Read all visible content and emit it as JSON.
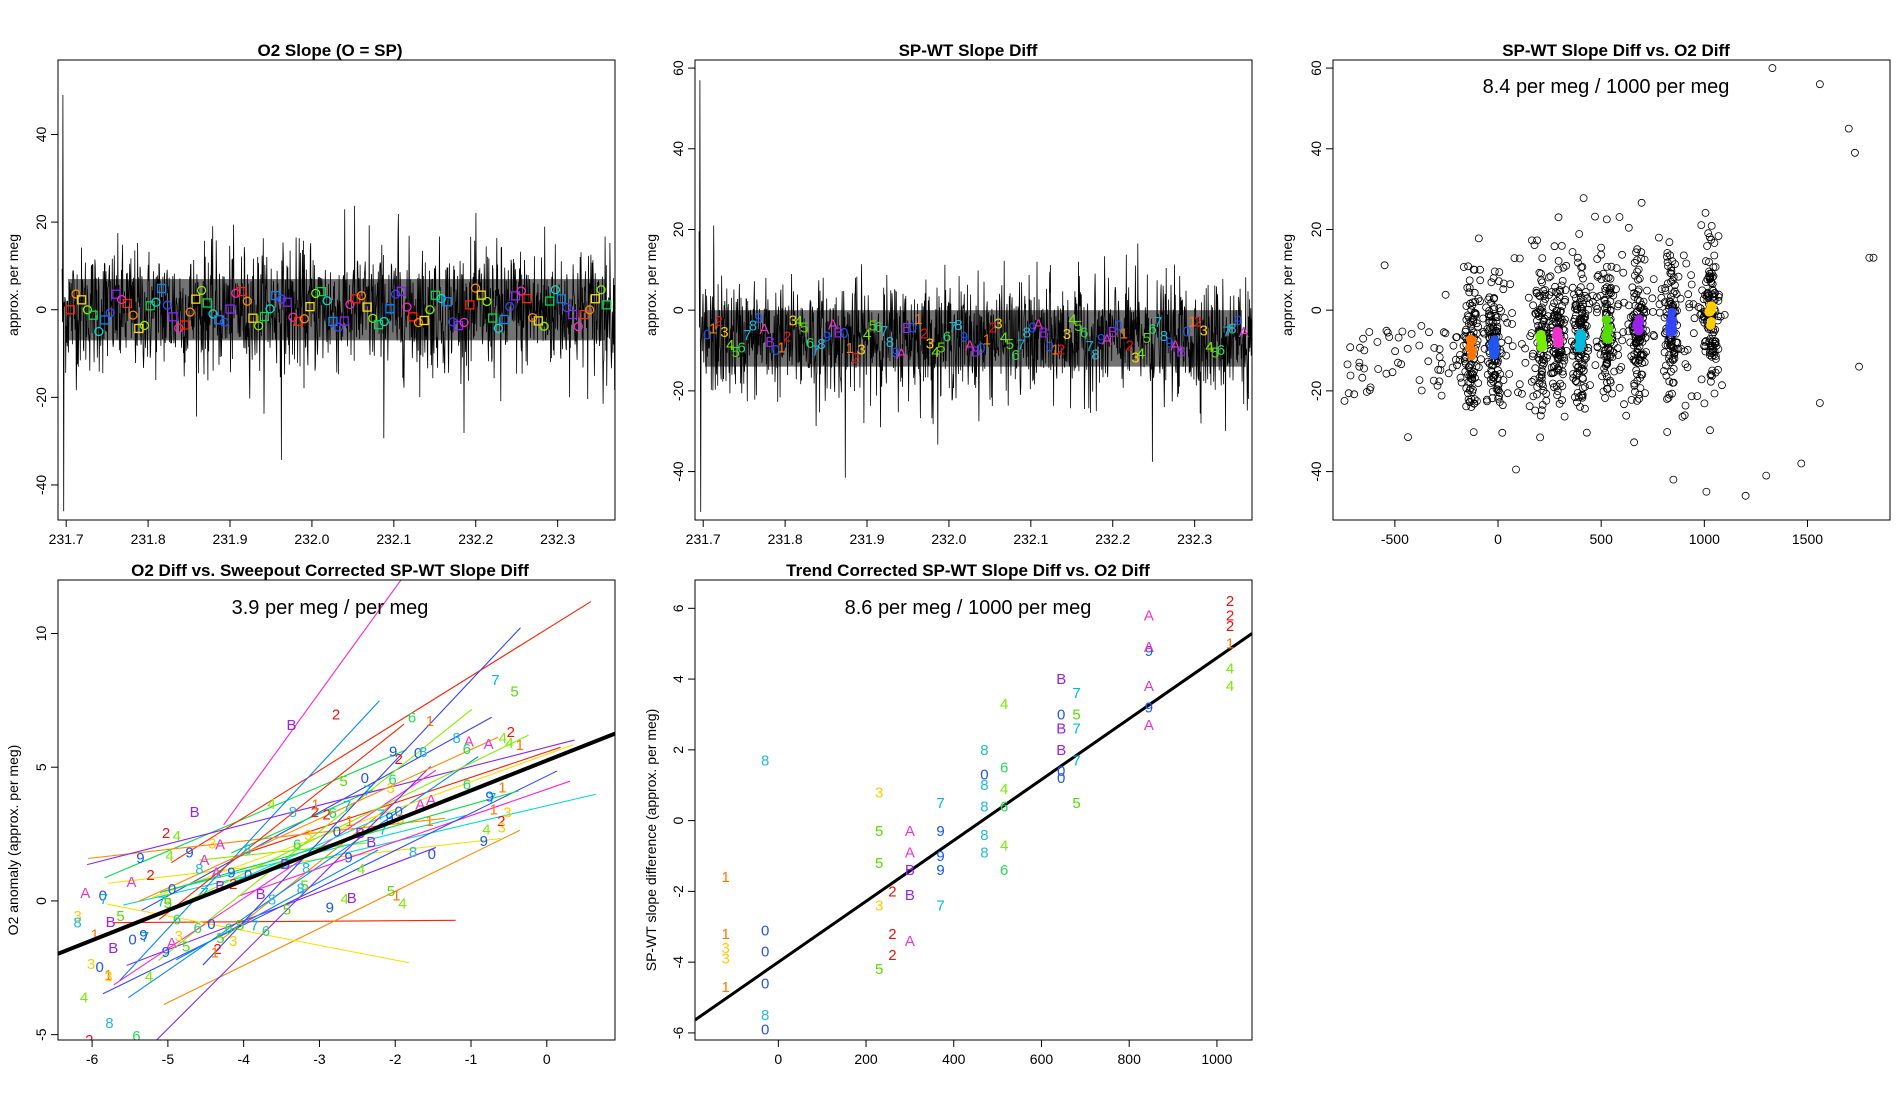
{
  "chart_data": [
    {
      "type": "line",
      "title": "O2 Slope (O = SP)",
      "xlabel": "",
      "ylabel": "approx. per meg",
      "xlim": [
        231.69,
        232.37
      ],
      "ylim": [
        -48,
        57
      ],
      "xticks": [
        "231.7",
        "231.8",
        "231.9",
        "232.0",
        "232.1",
        "232.2",
        "232.3"
      ],
      "yticks": [
        "-40",
        "-20",
        "0",
        "20",
        "40"
      ],
      "series_note": "dense noisy O2 slope trace around 0; colored squares and circles mark cylinder means",
      "base": 0
    },
    {
      "type": "line",
      "title": "SP-WT Slope Diff",
      "xlabel": "",
      "ylabel": "approx. per meg",
      "xlim": [
        231.69,
        232.37
      ],
      "ylim": [
        -52,
        62
      ],
      "xticks": [
        "231.7",
        "231.8",
        "231.9",
        "232.0",
        "232.1",
        "232.2",
        "232.3"
      ],
      "yticks": [
        "-40",
        "-20",
        "0",
        "20",
        "40",
        "60"
      ],
      "series_note": "dense noisy slope difference trace around -7; colored digits/letters mark cylinder codes",
      "base": -7
    },
    {
      "type": "scatter",
      "title": "SP-WT Slope Diff vs. O2 Diff",
      "annotation": "8.4 per meg / 1000 per meg",
      "xlabel": "",
      "ylabel": "approx. per meg",
      "xlim": [
        -800,
        1900
      ],
      "ylim": [
        -52,
        62
      ],
      "xticks": [
        "-500",
        "0",
        "500",
        "1000",
        "1500"
      ],
      "yticks": [
        "-40",
        "-20",
        "0",
        "20",
        "40",
        "60"
      ],
      "clusters_x": [
        -130,
        -20,
        210,
        290,
        400,
        530,
        680,
        840,
        1030
      ],
      "cluster_means": [
        -9,
        -10,
        -8,
        -7,
        -7,
        -6,
        -4,
        -3,
        -1
      ]
    },
    {
      "type": "scatter",
      "title": "O2 Diff vs. Sweepout Corrected SP-WT Slope Diff",
      "annotation": "3.9 per meg / per meg",
      "xlabel": "",
      "ylabel": "O2 anomaly (approx. per meg)",
      "xlim": [
        -6.45,
        0.9
      ],
      "ylim": [
        -5.2,
        12
      ],
      "xticks": [
        "-6",
        "-5",
        "-4",
        "-3",
        "-2",
        "-1",
        "0"
      ],
      "yticks": [
        "-5",
        "0",
        "5",
        "10"
      ],
      "fit_line": {
        "slope": 1.12,
        "intercept": 5.25
      }
    },
    {
      "type": "scatter",
      "title": "Trend Corrected SP-WT Slope Diff vs. O2 Diff",
      "annotation": "8.6 per meg / 1000 per meg",
      "xlabel": "",
      "ylabel": "SP-WT slope difference (approx. per meg)",
      "xlim": [
        -190,
        1080
      ],
      "ylim": [
        -6.2,
        6.8
      ],
      "xticks": [
        "0",
        "200",
        "400",
        "600",
        "800",
        "1000"
      ],
      "yticks": [
        "-6",
        "-4",
        "-2",
        "0",
        "2",
        "4",
        "6"
      ],
      "fit_line": {
        "slope": 0.0086,
        "intercept": -4.0
      },
      "points": [
        {
          "x": -120,
          "y": -3.2,
          "label": "1"
        },
        {
          "x": -120,
          "y": -3.6,
          "label": "3"
        },
        {
          "x": -120,
          "y": -1.6,
          "label": "1"
        },
        {
          "x": -120,
          "y": -3.9,
          "label": "3"
        },
        {
          "x": -120,
          "y": -4.7,
          "label": "1"
        },
        {
          "x": -30,
          "y": -3.1,
          "label": "0"
        },
        {
          "x": -30,
          "y": -3.7,
          "label": "0"
        },
        {
          "x": -30,
          "y": -4.6,
          "label": "0"
        },
        {
          "x": -30,
          "y": -5.5,
          "label": "8"
        },
        {
          "x": -30,
          "y": -5.9,
          "label": "0"
        },
        {
          "x": -30,
          "y": 1.7,
          "label": "8"
        },
        {
          "x": 230,
          "y": -1.2,
          "label": "5"
        },
        {
          "x": 230,
          "y": -2.4,
          "label": "3"
        },
        {
          "x": 230,
          "y": -4.2,
          "label": "5"
        },
        {
          "x": 230,
          "y": 0.8,
          "label": "3"
        },
        {
          "x": 230,
          "y": -0.3,
          "label": "5"
        },
        {
          "x": 260,
          "y": -2.0,
          "label": "2"
        },
        {
          "x": 260,
          "y": -3.2,
          "label": "2"
        },
        {
          "x": 260,
          "y": -3.8,
          "label": "2"
        },
        {
          "x": 300,
          "y": -0.3,
          "label": "A"
        },
        {
          "x": 300,
          "y": -1.4,
          "label": "B"
        },
        {
          "x": 300,
          "y": -2.1,
          "label": "B"
        },
        {
          "x": 300,
          "y": -3.4,
          "label": "A"
        },
        {
          "x": 300,
          "y": -0.9,
          "label": "A"
        },
        {
          "x": 370,
          "y": 0.5,
          "label": "7"
        },
        {
          "x": 370,
          "y": -0.3,
          "label": "9"
        },
        {
          "x": 370,
          "y": -1.4,
          "label": "9"
        },
        {
          "x": 370,
          "y": -2.4,
          "label": "7"
        },
        {
          "x": 370,
          "y": -1.0,
          "label": "9"
        },
        {
          "x": 470,
          "y": 2.0,
          "label": "8"
        },
        {
          "x": 470,
          "y": 1.3,
          "label": "0"
        },
        {
          "x": 470,
          "y": 0.4,
          "label": "8"
        },
        {
          "x": 470,
          "y": -0.4,
          "label": "8"
        },
        {
          "x": 470,
          "y": -0.9,
          "label": "8"
        },
        {
          "x": 470,
          "y": 1.0,
          "label": "8"
        },
        {
          "x": 515,
          "y": 3.3,
          "label": "4"
        },
        {
          "x": 515,
          "y": 1.5,
          "label": "6"
        },
        {
          "x": 515,
          "y": 0.4,
          "label": "6"
        },
        {
          "x": 515,
          "y": -0.7,
          "label": "4"
        },
        {
          "x": 515,
          "y": -1.4,
          "label": "6"
        },
        {
          "x": 515,
          "y": 0.9,
          "label": "4"
        },
        {
          "x": 645,
          "y": 4.0,
          "label": "B"
        },
        {
          "x": 645,
          "y": 3.0,
          "label": "0"
        },
        {
          "x": 645,
          "y": 2.6,
          "label": "B"
        },
        {
          "x": 645,
          "y": 2.0,
          "label": "B"
        },
        {
          "x": 645,
          "y": 1.4,
          "label": "0"
        },
        {
          "x": 645,
          "y": 1.2,
          "label": "0"
        },
        {
          "x": 680,
          "y": 3.6,
          "label": "7"
        },
        {
          "x": 680,
          "y": 3.0,
          "label": "5"
        },
        {
          "x": 680,
          "y": 1.7,
          "label": "7"
        },
        {
          "x": 680,
          "y": 0.5,
          "label": "5"
        },
        {
          "x": 680,
          "y": 2.6,
          "label": "7"
        },
        {
          "x": 845,
          "y": 5.8,
          "label": "A"
        },
        {
          "x": 845,
          "y": 4.8,
          "label": "9"
        },
        {
          "x": 845,
          "y": 3.8,
          "label": "A"
        },
        {
          "x": 845,
          "y": 3.2,
          "label": "9"
        },
        {
          "x": 845,
          "y": 2.7,
          "label": "A"
        },
        {
          "x": 845,
          "y": 4.9,
          "label": "A"
        },
        {
          "x": 1030,
          "y": 6.2,
          "label": "2"
        },
        {
          "x": 1030,
          "y": 5.5,
          "label": "2"
        },
        {
          "x": 1030,
          "y": 5.0,
          "label": "1"
        },
        {
          "x": 1030,
          "y": 4.3,
          "label": "4"
        },
        {
          "x": 1030,
          "y": 3.8,
          "label": "4"
        },
        {
          "x": 1030,
          "y": 5.8,
          "label": "2"
        }
      ]
    }
  ],
  "label_colors": {
    "0": "#2255ee",
    "1": "#ff7700",
    "2": "#ee1111",
    "3": "#ffcc00",
    "4": "#77ee00",
    "5": "#55dd00",
    "6": "#22dd55",
    "7": "#00bbdd",
    "8": "#22bbdd",
    "9": "#1155ff",
    "A": "#ee33cc",
    "B": "#9922ee"
  },
  "series_colors": [
    "#ff2200",
    "#ff8800",
    "#ffdd00",
    "#88ee00",
    "#00dd44",
    "#00ddcc",
    "#0088ff",
    "#3344ff",
    "#8822ff",
    "#ff22cc"
  ]
}
